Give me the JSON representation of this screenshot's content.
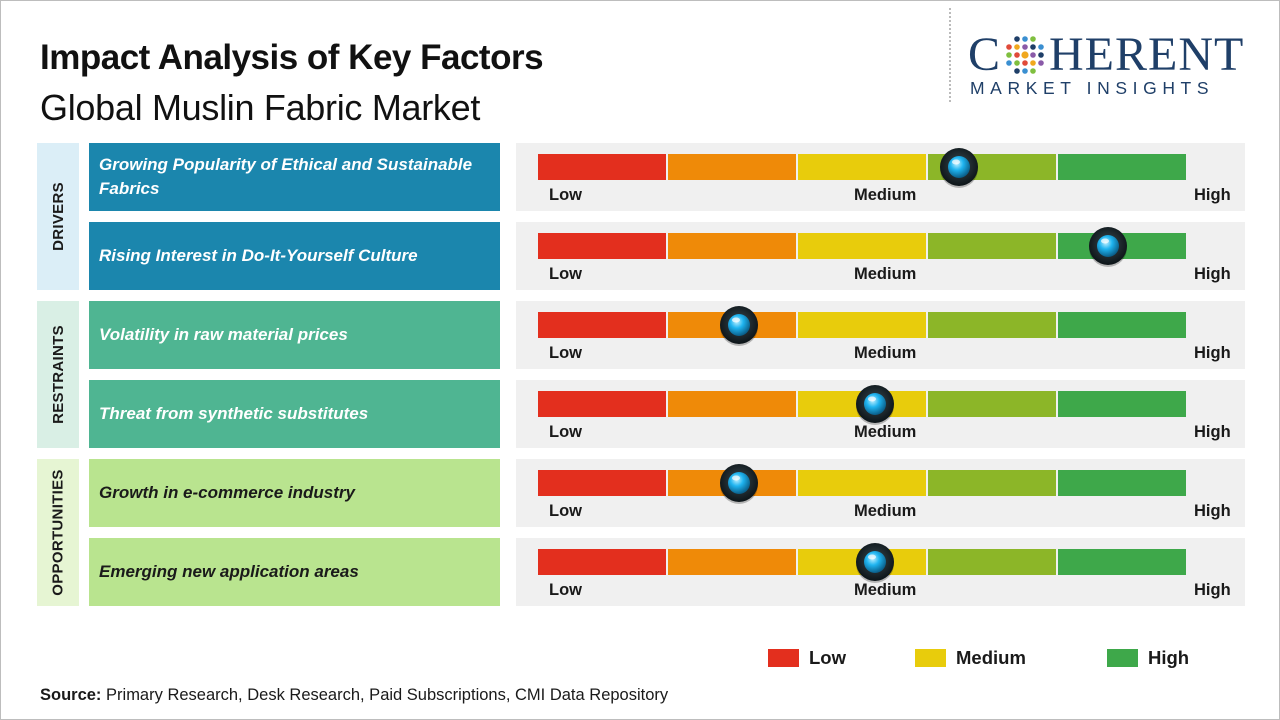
{
  "header": {
    "title": "Impact Analysis of Key Factors",
    "subtitle": "Global Muslin Fabric Market"
  },
  "logo": {
    "word_left": "C",
    "word_right": "HERENT",
    "tagline": "MARKET INSIGHTS"
  },
  "colors": {
    "brand": "#1f3f68",
    "drivers_fill": "#1b86ad",
    "drivers_label_bg": "#dbeef7",
    "restraints_fill": "#4fb592",
    "restraints_label_bg": "#d9efe5",
    "opportunities_fill": "#b9e48f",
    "opportunities_label_bg": "#e6f5d3",
    "scale": [
      "#e32f1e",
      "#ef8a08",
      "#e8cc0c",
      "#8cb628",
      "#3ea84a"
    ],
    "knob": "#1fb4f0"
  },
  "scale_labels": {
    "low": "Low",
    "medium": "Medium",
    "high": "High"
  },
  "chart_data": {
    "type": "gauge",
    "scale": [
      "Low",
      "Medium",
      "High"
    ],
    "scale_range": [
      0,
      1
    ],
    "groups": [
      {
        "name": "DRIVERS",
        "factors": [
          {
            "label": "Growing Popularity of Ethical and Sustainable Fabrics",
            "impact": 0.65
          },
          {
            "label": "Rising Interest in Do-It-Yourself  Culture",
            "impact": 0.88
          }
        ]
      },
      {
        "name": "RESTRAINTS",
        "factors": [
          {
            "label": "Volatility  in raw material  prices",
            "impact": 0.31
          },
          {
            "label": "Threat from synthetic substitutes",
            "impact": 0.52
          }
        ]
      },
      {
        "name": "OPPORTUNITIES",
        "factors": [
          {
            "label": "Growth in e-commerce industry",
            "impact": 0.31
          },
          {
            "label": "Emerging new application areas",
            "impact": 0.52
          }
        ]
      }
    ],
    "legend": [
      {
        "label": "Low",
        "color": "#e32f1e"
      },
      {
        "label": "Medium",
        "color": "#e8cc0c"
      },
      {
        "label": "High",
        "color": "#3ea84a"
      }
    ]
  },
  "source": {
    "label": "Source:",
    "text": " Primary Research, Desk Research, Paid Subscriptions, CMI Data Repository"
  }
}
